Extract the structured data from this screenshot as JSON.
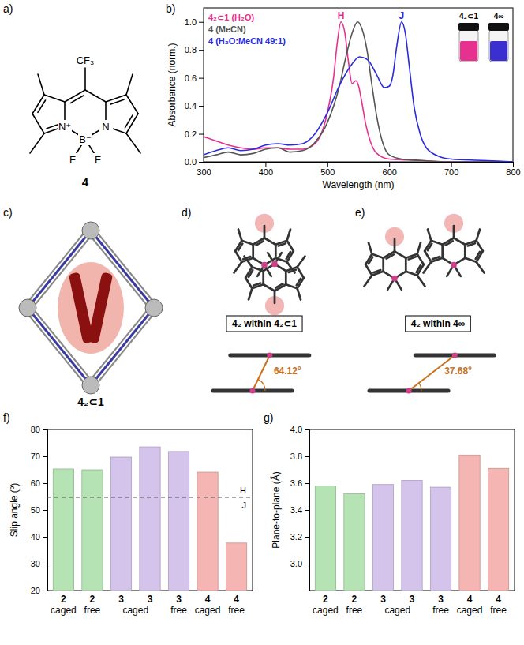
{
  "figure": {
    "panel_labels": [
      "a)",
      "b)",
      "c)",
      "d)",
      "e)",
      "f)",
      "g)"
    ],
    "structure": {
      "label": "4",
      "atoms": [
        "CF₃",
        "N⁺",
        "B⁻",
        "F",
        "F",
        "N"
      ]
    },
    "cage": {
      "label": "4₂⊂1"
    },
    "dimers": [
      {
        "label": "4₂ within 4₂⊂1",
        "slip_angle": {
          "value": 64.12,
          "label": "64.12º"
        }
      },
      {
        "label": "4₂ within 4∞",
        "slip_angle": {
          "value": 37.68,
          "label": "37.68º"
        }
      }
    ]
  },
  "chart_data": [
    {
      "type": "line",
      "x_label": "Wavelength (nm)",
      "y_label": "Absorbance (norm.)",
      "xlim": [
        300,
        800
      ],
      "xticks": [
        300,
        400,
        500,
        600,
        700,
        800
      ],
      "ylim": [
        0,
        1.1
      ],
      "yticks": [
        {
          "value": 0,
          "label": "0.0"
        },
        0.2,
        0.4,
        0.6,
        0.8,
        {
          "value": 1,
          "label": "1.0"
        }
      ],
      "legend": "upper left",
      "series": [
        {
          "name": "4₂⊂1 (H₂O)",
          "color": "#e6318f",
          "x": [
            300,
            320,
            340,
            360,
            380,
            400,
            420,
            440,
            460,
            480,
            500,
            510,
            516,
            522,
            528,
            534,
            540,
            546,
            550,
            556,
            562,
            570,
            580,
            600,
            650,
            700,
            800
          ],
          "values": [
            0.18,
            0.15,
            0.12,
            0.1,
            0.09,
            0.1,
            0.1,
            0.09,
            0.09,
            0.13,
            0.35,
            0.6,
            0.85,
            1.0,
            0.93,
            0.72,
            0.56,
            0.58,
            0.55,
            0.42,
            0.27,
            0.14,
            0.06,
            0.02,
            0.01,
            0.0,
            0.0
          ]
        },
        {
          "name": "4 (MeCN)",
          "color": "#555555",
          "x": [
            300,
            320,
            340,
            360,
            380,
            400,
            420,
            440,
            460,
            480,
            500,
            520,
            530,
            540,
            549,
            556,
            564,
            572,
            580,
            590,
            600,
            620,
            650,
            700,
            800
          ],
          "values": [
            0.03,
            0.05,
            0.07,
            0.05,
            0.06,
            0.09,
            0.1,
            0.07,
            0.08,
            0.14,
            0.28,
            0.55,
            0.75,
            0.92,
            1.0,
            0.95,
            0.8,
            0.55,
            0.32,
            0.13,
            0.05,
            0.02,
            0.01,
            0.0,
            0.0
          ]
        },
        {
          "name": "4 (H₂O:MeCN 49:1)",
          "color": "#2a2ae0",
          "x": [
            300,
            320,
            340,
            360,
            380,
            400,
            420,
            440,
            460,
            480,
            500,
            520,
            540,
            552,
            565,
            580,
            592,
            600,
            606,
            612,
            620,
            626,
            632,
            640,
            650,
            660,
            680,
            700,
            750,
            800
          ],
          "values": [
            0.05,
            0.08,
            0.1,
            0.08,
            0.09,
            0.12,
            0.13,
            0.12,
            0.13,
            0.2,
            0.35,
            0.55,
            0.7,
            0.75,
            0.73,
            0.62,
            0.53,
            0.54,
            0.62,
            0.82,
            1.0,
            0.92,
            0.7,
            0.4,
            0.2,
            0.1,
            0.04,
            0.02,
            0.01,
            0.0
          ]
        }
      ],
      "annotations": [
        {
          "text": "H",
          "x": 522,
          "y": 1.02,
          "color": "#e6318f"
        },
        {
          "text": "J",
          "x": 620,
          "y": 1.02,
          "color": "#2a2ae0"
        }
      ],
      "insets": [
        {
          "label": "4₂⊂1",
          "color": "#e6318f"
        },
        {
          "label": "4∞",
          "color": "#3b2fd0"
        }
      ]
    },
    {
      "type": "bar",
      "y_label": "Slip angle (º)",
      "categories": [
        [
          "2",
          "caged"
        ],
        [
          "2",
          "free"
        ],
        [
          "3"
        ],
        [
          "3"
        ],
        [
          "3",
          "free"
        ],
        [
          "4",
          "caged"
        ],
        [
          "4",
          "free"
        ]
      ],
      "category_groups": [
        {
          "label": "caged",
          "categories": [
            2,
            3
          ]
        }
      ],
      "values": [
        65.3,
        65.0,
        69.7,
        73.5,
        71.8,
        64.1,
        37.7
      ],
      "colors": [
        "#b5e3b3",
        "#b5e3b3",
        "#d4c3ea",
        "#d4c3ea",
        "#d4c3ea",
        "#f5b5b2",
        "#f5b5b2"
      ],
      "ylim": [
        20,
        80
      ],
      "yticks": [
        20,
        30,
        40,
        50,
        60,
        70,
        80
      ],
      "threshold": {
        "value": 54.7,
        "labels": [
          "H",
          "J"
        ],
        "line_style": "dashed"
      }
    },
    {
      "type": "bar",
      "y_label": "Plane-to-plane (Å)",
      "categories": [
        [
          "2",
          "caged"
        ],
        [
          "2",
          "free"
        ],
        [
          "3"
        ],
        [
          "3"
        ],
        [
          "3",
          "free"
        ],
        [
          "4",
          "caged"
        ],
        [
          "4",
          "free"
        ]
      ],
      "category_groups": [
        {
          "label": "caged",
          "categories": [
            2,
            3
          ]
        }
      ],
      "values": [
        3.58,
        3.52,
        3.59,
        3.62,
        3.57,
        3.81,
        3.71
      ],
      "colors": [
        "#b5e3b3",
        "#b5e3b3",
        "#d4c3ea",
        "#d4c3ea",
        "#d4c3ea",
        "#f5b5b2",
        "#f5b5b2"
      ],
      "ylim": [
        2.8,
        4.0
      ],
      "yticks": [
        {
          "value": 3,
          "label": "3.0"
        },
        3.2,
        3.4,
        3.6,
        3.8,
        {
          "value": 4,
          "label": "4.0"
        }
      ]
    }
  ]
}
